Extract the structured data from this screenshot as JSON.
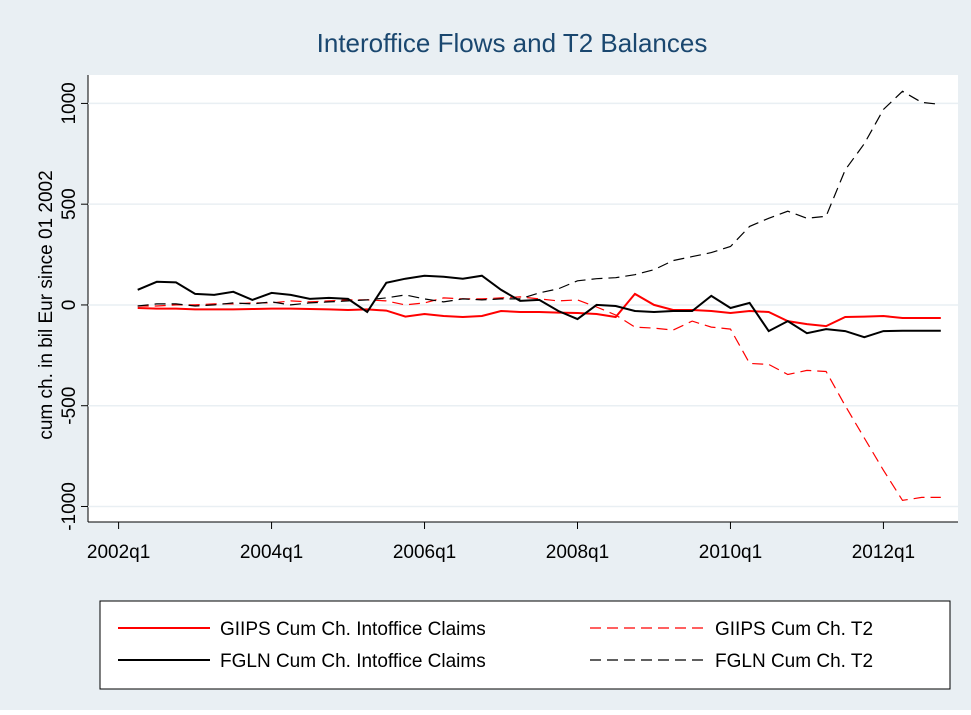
{
  "chart_data": {
    "type": "line",
    "title": "Interoffice Flows and T2 Balances",
    "ylabel": "cum ch. in bil Eur since 01 2002",
    "x": [
      169,
      170,
      171,
      172,
      173,
      174,
      175,
      176,
      177,
      178,
      179,
      180,
      181,
      182,
      183,
      184,
      185,
      186,
      187,
      188,
      189,
      190,
      191,
      192,
      193,
      194,
      195,
      196,
      197,
      198,
      199,
      200,
      201,
      202,
      203,
      204,
      205,
      206,
      207,
      208,
      209,
      210,
      211
    ],
    "xlim": [
      166.4,
      211.9
    ],
    "xticks": [
      {
        "value": 168,
        "label": "2002q1"
      },
      {
        "value": 176,
        "label": "2004q1"
      },
      {
        "value": 184,
        "label": "2006q1"
      },
      {
        "value": 192,
        "label": "2008q1"
      },
      {
        "value": 200,
        "label": "2010q1"
      },
      {
        "value": 208,
        "label": "2012q1"
      }
    ],
    "ylim": [
      -1077,
      1141
    ],
    "yticks": [
      -1000,
      -500,
      0,
      500,
      1000
    ],
    "grid": true,
    "legend": "bottom",
    "series": [
      {
        "name": "GIIPS Cum Ch. Intoffice Claims",
        "color": "#ff0000",
        "dash": "solid",
        "values": [
          -15,
          -18,
          -18,
          -22,
          -22,
          -22,
          -20,
          -18,
          -18,
          -20,
          -22,
          -25,
          -22,
          -28,
          -58,
          -45,
          -55,
          -60,
          -55,
          -30,
          -35,
          -35,
          -38,
          -40,
          -45,
          -60,
          55,
          0,
          -25,
          -25,
          -30,
          -40,
          -30,
          -35,
          -80,
          -95,
          -105,
          -60,
          -58,
          -55,
          -65,
          -65,
          -65
        ]
      },
      {
        "name": "GIIPS Cum Ch. T2",
        "color": "#ff0000",
        "dash": "dashed",
        "values": [
          -5,
          -5,
          0,
          0,
          5,
          5,
          10,
          10,
          20,
          15,
          20,
          25,
          25,
          20,
          0,
          10,
          35,
          30,
          30,
          35,
          40,
          30,
          20,
          25,
          -10,
          -50,
          -110,
          -115,
          -125,
          -80,
          -110,
          -120,
          -290,
          -295,
          -345,
          -325,
          -330,
          -500,
          -660,
          -820,
          -970,
          -955,
          -955
        ]
      },
      {
        "name": "FGLN Cum Ch. Intoffice Claims",
        "color": "#000000",
        "dash": "solid",
        "values": [
          75,
          115,
          112,
          55,
          50,
          65,
          25,
          60,
          50,
          30,
          35,
          30,
          -35,
          110,
          130,
          145,
          140,
          130,
          145,
          75,
          20,
          25,
          -30,
          -70,
          0,
          -5,
          -30,
          -35,
          -30,
          -30,
          45,
          -15,
          10,
          -130,
          -80,
          -140,
          -120,
          -130,
          -160,
          -130,
          -128,
          -128,
          -128
        ]
      },
      {
        "name": "FGLN Cum Ch. T2",
        "color": "#000000",
        "dash": "dashed",
        "values": [
          -5,
          5,
          5,
          -5,
          0,
          10,
          5,
          15,
          0,
          10,
          15,
          20,
          25,
          35,
          50,
          30,
          15,
          30,
          25,
          30,
          30,
          60,
          80,
          120,
          130,
          135,
          150,
          175,
          220,
          240,
          260,
          290,
          390,
          430,
          465,
          430,
          440,
          670,
          800,
          970,
          1060,
          1005,
          995
        ]
      }
    ]
  }
}
